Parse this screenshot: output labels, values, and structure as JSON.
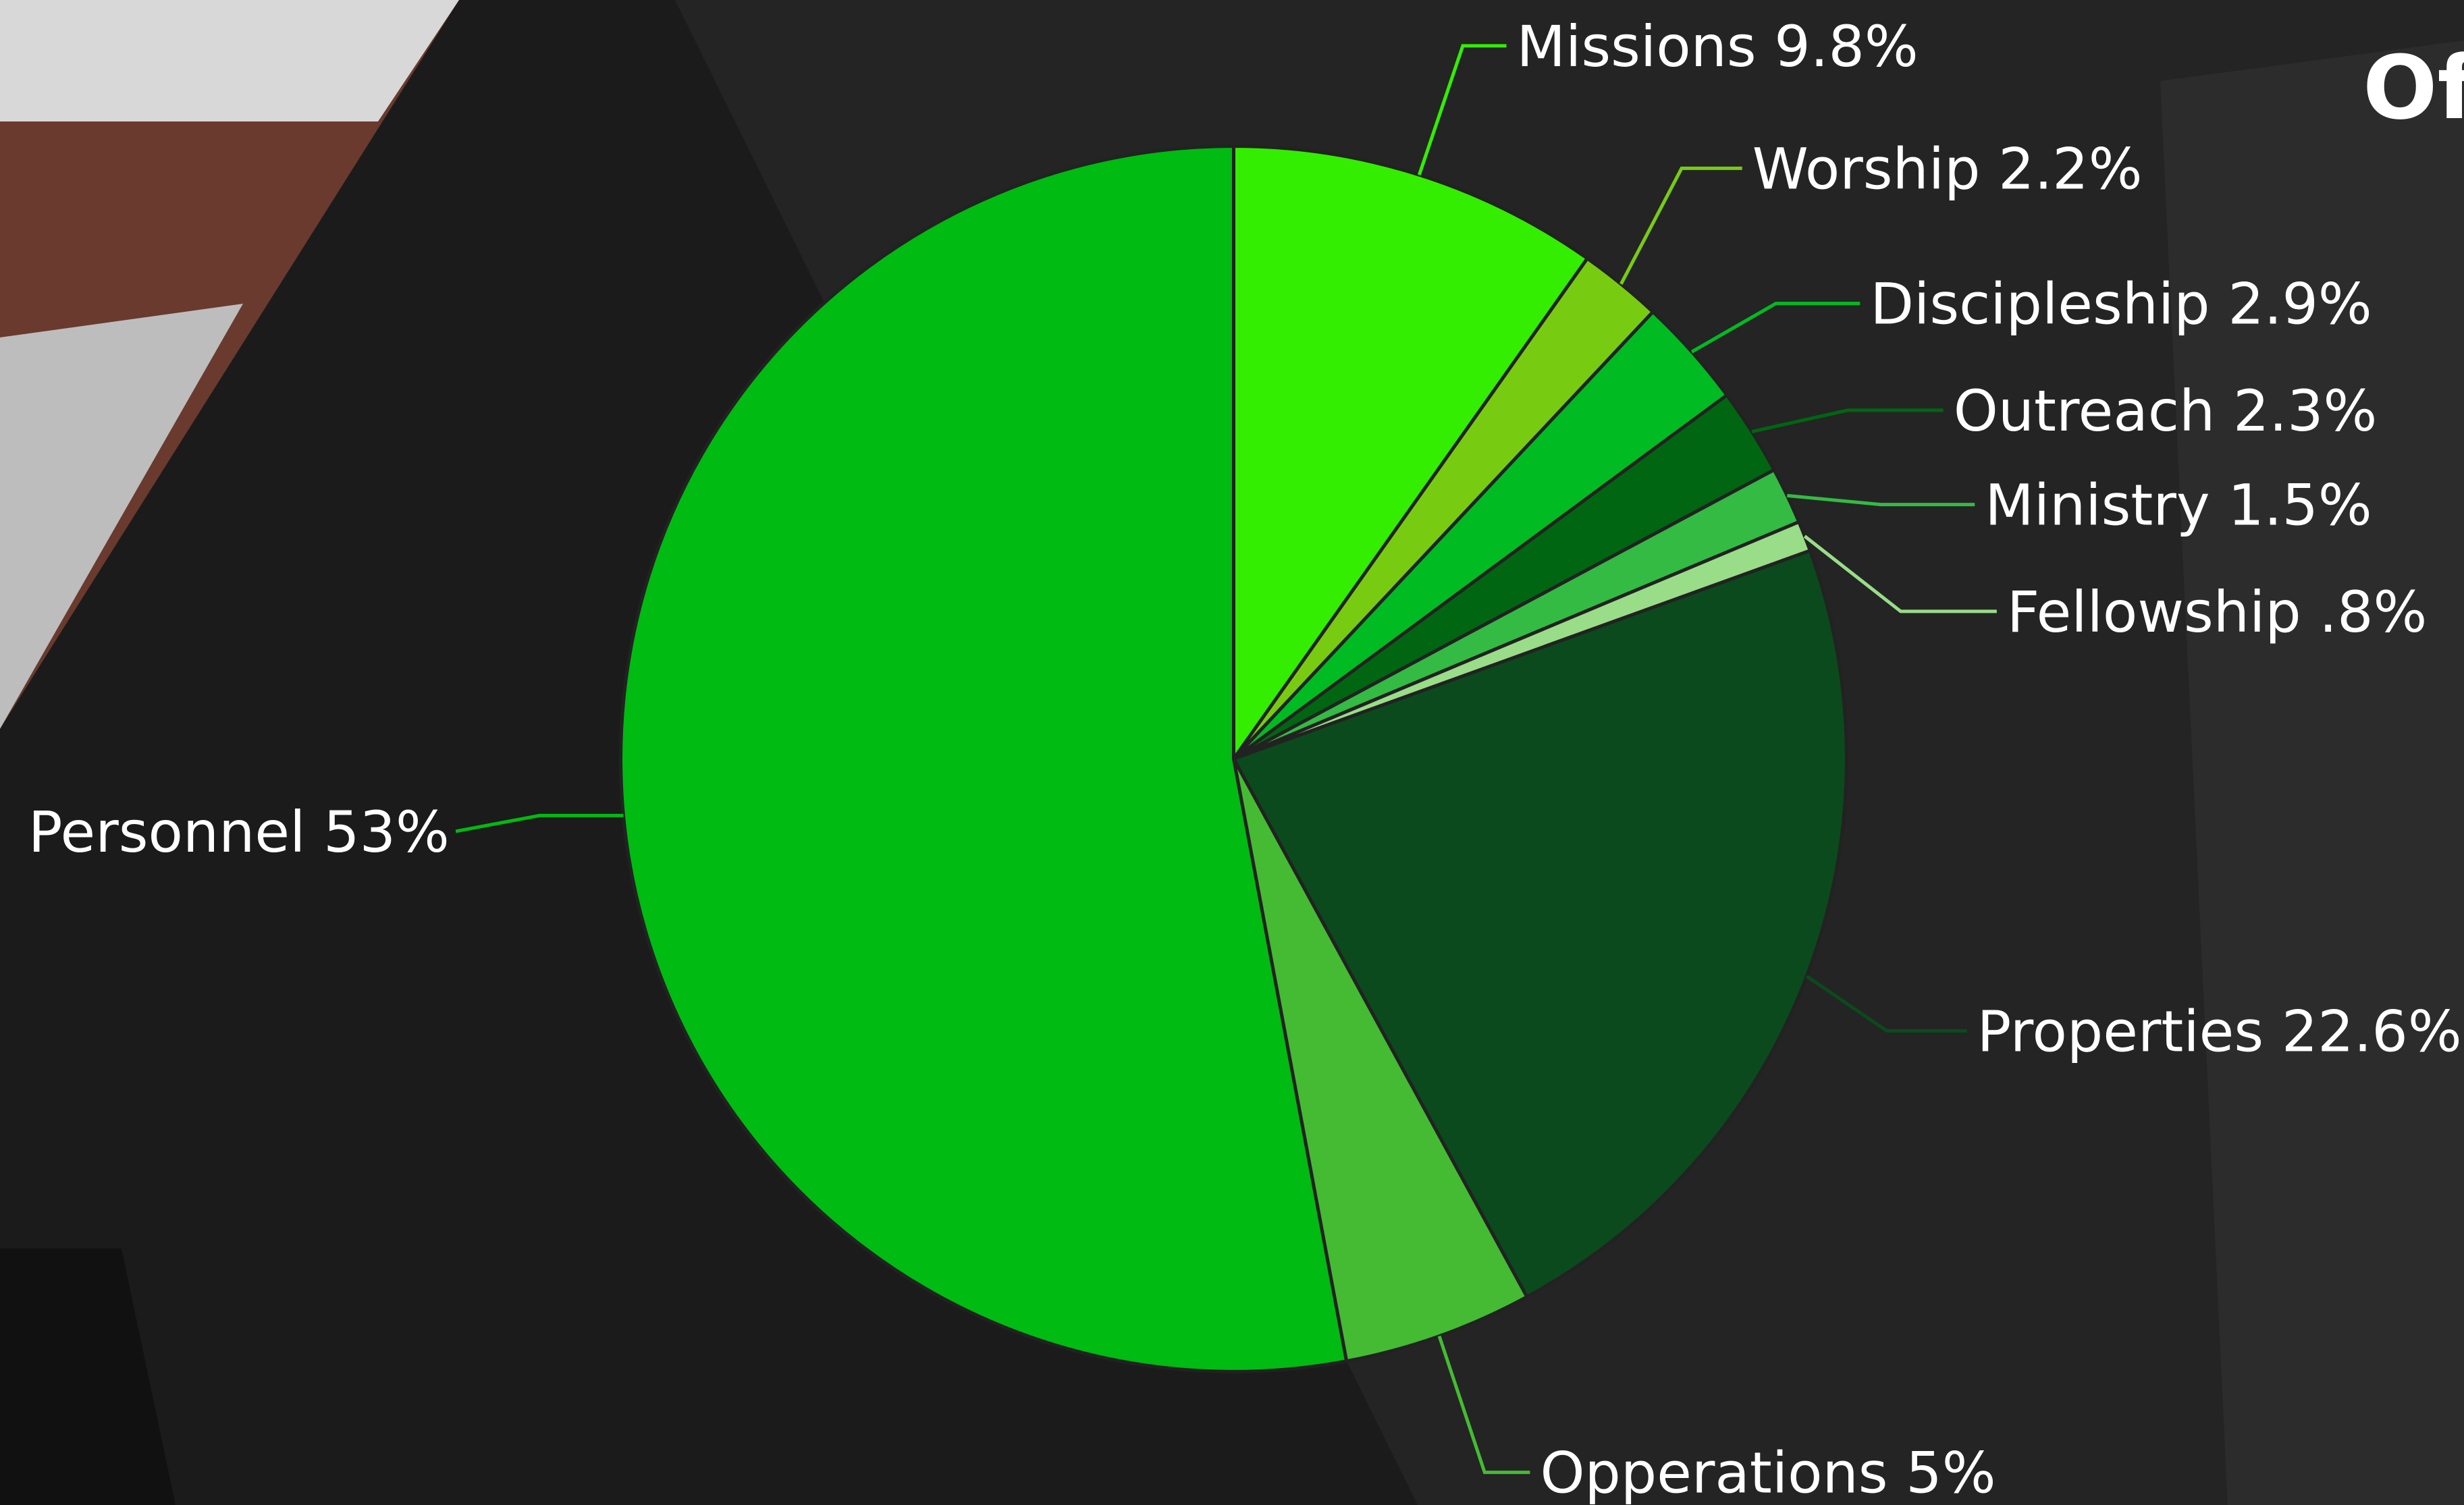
{
  "chart_data": {
    "type": "pie",
    "title": "Of",
    "categories": [
      "Missions",
      "Worship",
      "Discipleship",
      "Outreach",
      "Ministry",
      "Fellowship",
      "Properties",
      "Opperations",
      "Personnel"
    ],
    "values": [
      9.8,
      2.2,
      2.9,
      2.3,
      1.5,
      0.8,
      22.6,
      5,
      53
    ],
    "value_labels": [
      "9.8%",
      "2.2%",
      "2.9%",
      "2.3%",
      "1.5%",
      ".8%",
      "22.6%",
      "5%",
      "53%"
    ],
    "colors": [
      "#33ee00",
      "#77cc11",
      "#00bb22",
      "#006611",
      "#33bb44",
      "#99dd88",
      "#0b4a1c",
      "#44bb33",
      "#00bb11"
    ]
  }
}
